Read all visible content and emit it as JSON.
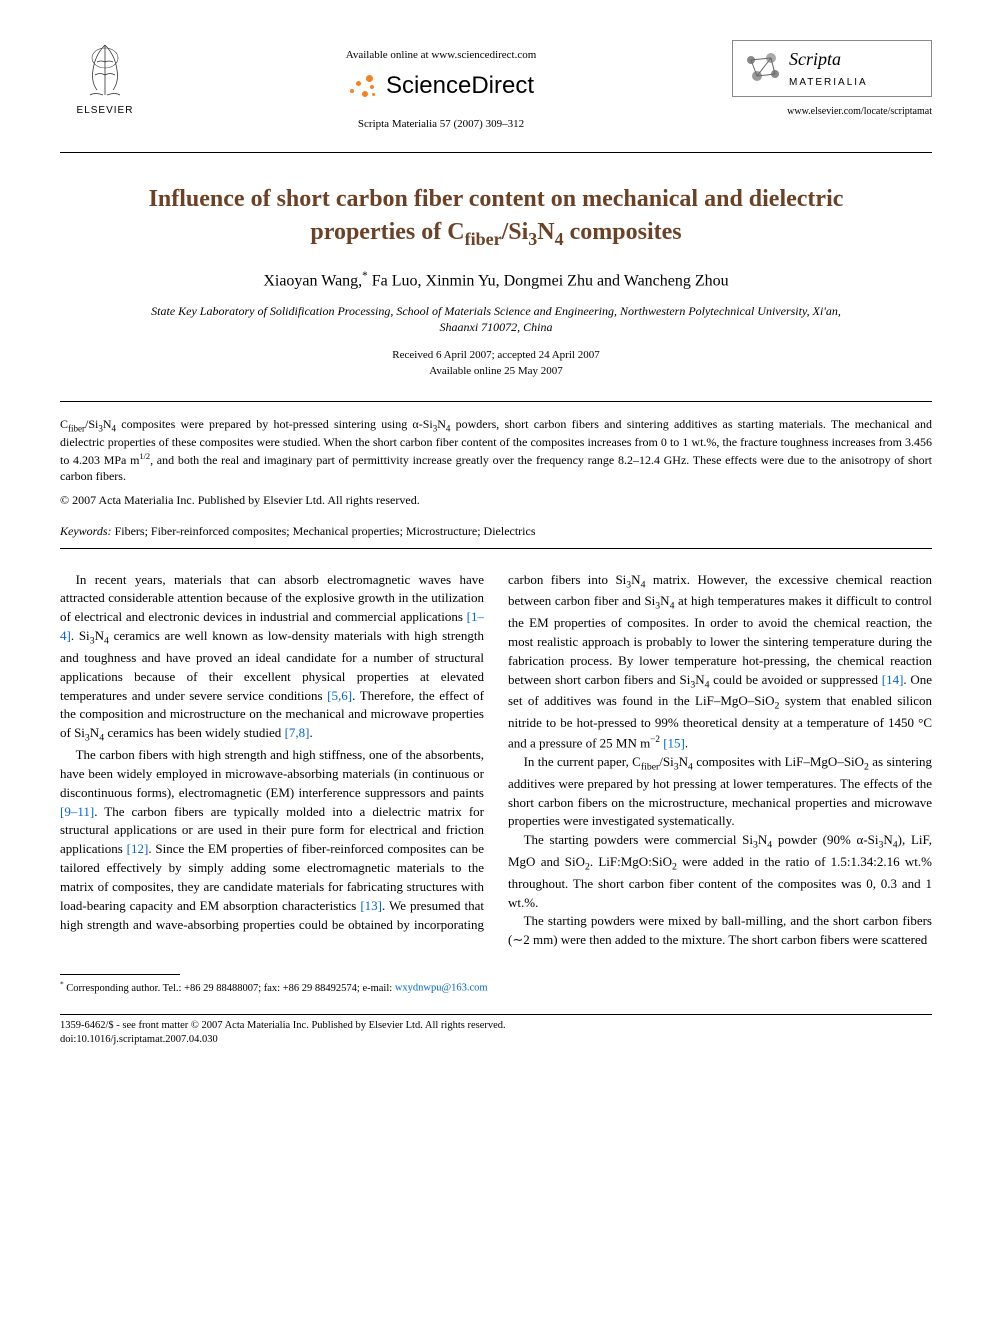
{
  "header": {
    "available_online": "Available online at www.sciencedirect.com",
    "sd_text": "ScienceDirect",
    "citation": "Scripta Materialia 57 (2007) 309–312",
    "elsevier_label": "ELSEVIER",
    "journal_name_italic": "Scripta",
    "journal_name_caps": "MATERIALIA",
    "journal_url": "www.elsevier.com/locate/scriptamat"
  },
  "title_html": "Influence of short carbon fiber content on mechanical and dielectric properties of C<sub>fiber</sub>/Si<sub>3</sub>N<sub>4</sub> composites",
  "authors_html": "Xiaoyan Wang,<sup>*</sup> Fa Luo, Xinmin Yu, Dongmei Zhu and Wancheng Zhou",
  "affiliation": "State Key Laboratory of Solidification Processing, School of Materials Science and Engineering, Northwestern Polytechnical University, Xi'an, Shaanxi 710072, China",
  "dates": {
    "received": "Received 6 April 2007; accepted 24 April 2007",
    "online": "Available online 25 May 2007"
  },
  "abstract_html": "C<sub>fiber</sub>/Si<sub>3</sub>N<sub>4</sub> composites were prepared by hot-pressed sintering using α-Si<sub>3</sub>N<sub>4</sub> powders, short carbon fibers and sintering additives as starting materials. The mechanical and dielectric properties of these composites were studied. When the short carbon fiber content of the composites increases from 0 to 1 wt.%, the fracture toughness increases from 3.456 to 4.203 MPa m<sup>1/2</sup>, and both the real and imaginary part of permittivity increase greatly over the frequency range 8.2–12.4 GHz. These effects were due to the anisotropy of short carbon fibers.",
  "copyright": "© 2007 Acta Materialia Inc. Published by Elsevier Ltd. All rights reserved.",
  "keywords_label": "Keywords:",
  "keywords_text": " Fibers; Fiber-reinforced composites; Mechanical properties; Microstructure; Dielectrics",
  "body": {
    "p1_html": "In recent years, materials that can absorb electromagnetic waves have attracted considerable attention because of the explosive growth in the utilization of electrical and electronic devices in industrial and commercial applications <span class=\"ref-link\">[1–4]</span>. Si<sub>3</sub>N<sub>4</sub> ceramics are well known as low-density materials with high strength and toughness and have proved an ideal candidate for a number of structural applications because of their excellent physical properties at elevated temperatures and under severe service conditions <span class=\"ref-link\">[5,6]</span>. Therefore, the effect of the composition and microstructure on the mechanical and microwave properties of Si<sub>3</sub>N<sub>4</sub> ceramics has been widely studied <span class=\"ref-link\">[7,8]</span>.",
    "p2_html": "The carbon fibers with high strength and high stiffness, one of the absorbents, have been widely employed in microwave-absorbing materials (in continuous or discontinuous forms), electromagnetic (EM) interference suppressors and paints <span class=\"ref-link\">[9–11]</span>. The carbon fibers are typically molded into a dielectric matrix for structural applications or are used in their pure form for electrical and friction applications <span class=\"ref-link\">[12]</span>. Since the EM properties of fiber-reinforced composites can be tailored effectively by simply adding some electromagnetic materials to the matrix of composites, they are candidate materials for fabricating structures with load-bearing capacity and EM absorption characteristics <span class=\"ref-link\">[13]</span>. We presumed that high strength and wave-absorbing properties could be obtained by incorporating carbon fibers into Si<sub>3</sub>N<sub>4</sub> matrix. However, the excessive chemical reaction between carbon fiber and Si<sub>3</sub>N<sub>4</sub> at high temperatures makes it difficult to control the EM properties of composites. In order to avoid the chemical reaction, the most realistic approach is probably to lower the sintering temperature during the fabrication process. By lower temperature hot-pressing, the chemical reaction between short carbon fibers and Si<sub>3</sub>N<sub>4</sub> could be avoided or suppressed <span class=\"ref-link\">[14]</span>. One set of additives was found in the LiF–MgO–SiO<sub>2</sub> system that enabled silicon nitride to be hot-pressed to 99% theoretical density at a temperature of 1450 °C and a pressure of 25 MN m<sup>−2</sup> <span class=\"ref-link\">[15]</span>.",
    "p3_html": "In the current paper, C<sub>fiber</sub>/Si<sub>3</sub>N<sub>4</sub> composites with LiF–MgO–SiO<sub>2</sub> as sintering additives were prepared by hot pressing at lower temperatures. The effects of the short carbon fibers on the microstructure, mechanical properties and microwave properties were investigated systematically.",
    "p4_html": "The starting powders were commercial Si<sub>3</sub>N<sub>4</sub> powder (90% α-Si<sub>3</sub>N<sub>4</sub>), LiF, MgO and SiO<sub>2</sub>. LiF:MgO:SiO<sub>2</sub> were added in the ratio of 1.5:1.34:2.16 wt.% throughout. The short carbon fiber content of the composites was 0, 0.3 and 1 wt.%.",
    "p5_html": "The starting powders were mixed by ball-milling, and the short carbon fibers (∼2 mm) were then added to the mixture. The short carbon fibers were scattered"
  },
  "footnote": {
    "text_html": "<sup>*</sup> Corresponding author. Tel.: +86 29 88488007; fax: +86 29 88492574; e-mail: ",
    "email": "wxydnwpu@163.com"
  },
  "footer": {
    "line1": "1359-6462/$ - see front matter © 2007 Acta Materialia Inc. Published by Elsevier Ltd. All rights reserved.",
    "line2": "doi:10.1016/j.scriptamat.2007.04.030"
  },
  "colors": {
    "title_color": "#6b4226",
    "link_color": "#0066cc",
    "sd_orange": "#f58220"
  }
}
